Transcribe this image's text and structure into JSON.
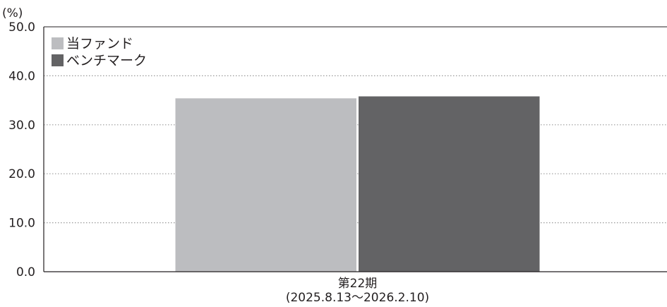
{
  "chart_data": {
    "type": "bar",
    "unit_label": "(%)",
    "categories": [
      "第22期"
    ],
    "category_sublabels": [
      "(2025.8.13～2026.2.10)"
    ],
    "series": [
      {
        "name": "当ファンド",
        "values": [
          35.4
        ],
        "color": "#bcbdc0"
      },
      {
        "name": "ベンチマーク",
        "values": [
          35.8
        ],
        "color": "#636365"
      }
    ],
    "y_ticks": [
      "0.0",
      "10.0",
      "20.0",
      "30.0",
      "40.0",
      "50.0"
    ],
    "ylim": [
      0,
      50
    ],
    "grid": "dotted horizontal",
    "legend_position": "top-left"
  }
}
